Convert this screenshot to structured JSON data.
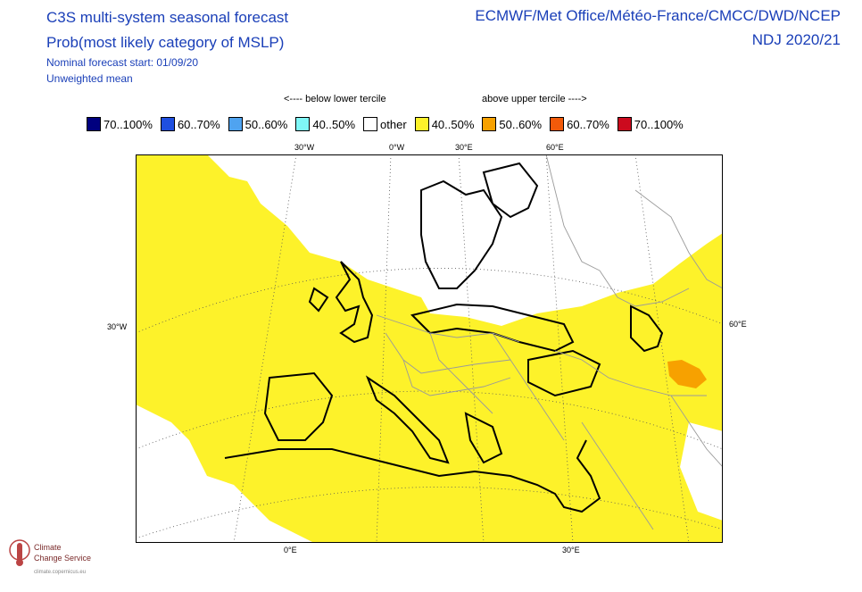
{
  "header": {
    "title_line1": "C3S multi-system seasonal forecast",
    "title_line2": "Prob(most likely category of MSLP)",
    "forecast_start": "Nominal forecast start: 01/09/20",
    "mean_type": "Unweighted mean",
    "models": "ECMWF/Met Office/Météo-France/CMCC/DWD/NCEP",
    "period": "NDJ 2020/21"
  },
  "legend": {
    "below_header": "<---- below lower tercile",
    "above_header": "above upper tercile ---->",
    "items": [
      {
        "label": "70..100%",
        "color": "#00007f"
      },
      {
        "label": "60..70%",
        "color": "#1f4fe0"
      },
      {
        "label": "50..60%",
        "color": "#4fa3f0"
      },
      {
        "label": "40..50%",
        "color": "#7ff7f7"
      },
      {
        "label": "other",
        "color": "#ffffff"
      },
      {
        "label": "40..50%",
        "color": "#fdf22a"
      },
      {
        "label": "50..60%",
        "color": "#f7a100"
      },
      {
        "label": "60..70%",
        "color": "#f25a0a"
      },
      {
        "label": "70..100%",
        "color": "#cc0a1e"
      }
    ]
  },
  "axes": {
    "top_labels": [
      "30°W",
      "0°W",
      "30°E",
      "60°E"
    ],
    "left_label": "30°W",
    "right_label": "60°E",
    "bottom_labels": [
      "0°E",
      "30°E"
    ]
  },
  "logo": {
    "line1": "Climate",
    "line2": "Change Service",
    "line3": "climate.copernicus.eu"
  }
}
